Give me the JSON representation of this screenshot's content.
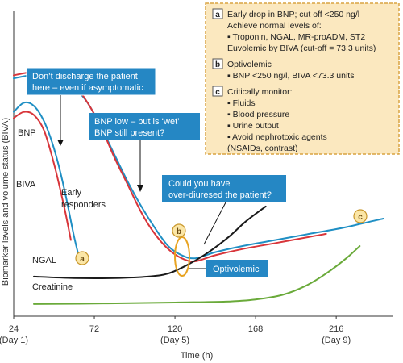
{
  "chart_data": {
    "type": "line",
    "xlabel": "Time (h)",
    "ylabel": "Biomarker levels and volume status (BIVA)",
    "xlim": [
      24,
      250
    ],
    "x_ticks": [
      {
        "value": 24,
        "label": "24",
        "sub": "(Day 1)"
      },
      {
        "value": 72,
        "label": "72",
        "sub": ""
      },
      {
        "value": 120,
        "label": "120",
        "sub": "(Day 5)"
      },
      {
        "value": 168,
        "label": "168",
        "sub": ""
      },
      {
        "value": 216,
        "label": "216",
        "sub": "(Day 9)"
      }
    ],
    "series": [
      {
        "name": "BNP",
        "color": "#1f8fc4",
        "x": [
          24,
          34,
          44,
          52,
          60,
          68,
          76,
          84,
          92,
          100,
          108,
          116,
          124,
          132,
          144,
          160,
          180,
          200,
          220,
          236,
          244
        ],
        "y": [
          78,
          79,
          79,
          78,
          75,
          70,
          62,
          53,
          44,
          36,
          29,
          23,
          20,
          19,
          21,
          23,
          25,
          27,
          29,
          31,
          32
        ]
      },
      {
        "name": "",
        "color": "#d8353a",
        "x": [
          24,
          34,
          44,
          52,
          60,
          68,
          76,
          84,
          92,
          100,
          108,
          116,
          124,
          132,
          144,
          160,
          180,
          200,
          210
        ],
        "y": [
          79,
          80,
          80,
          79,
          76,
          70,
          62,
          52,
          43,
          34,
          27,
          22,
          19,
          18,
          20,
          22,
          24,
          26,
          27
        ]
      },
      {
        "name": "BIVA",
        "color": "#1f8fc4",
        "x": [
          24,
          30,
          36,
          42,
          48,
          54,
          60,
          64
        ],
        "y": [
          67,
          70,
          69,
          64,
          55,
          42,
          26,
          17
        ]
      },
      {
        "name": "",
        "color": "#d8353a",
        "x": [
          24,
          30,
          36,
          42,
          48,
          54,
          58
        ],
        "y": [
          65,
          67,
          66,
          61,
          50,
          36,
          25
        ]
      },
      {
        "name": "NGAL",
        "color": "#1a1a1a",
        "x": [
          36,
          60,
          84,
          104,
          116,
          128,
          140,
          152,
          162,
          174
        ],
        "y": [
          13,
          12.5,
          12.5,
          13,
          14,
          17,
          21,
          26,
          31,
          36
        ]
      },
      {
        "name": "Creatinine",
        "color": "#6aaa3a",
        "x": [
          36,
          80,
          120,
          150,
          168,
          184,
          198,
          210,
          222,
          230
        ],
        "y": [
          4,
          4.2,
          4.5,
          4.8,
          5.5,
          7,
          10,
          14,
          19,
          23
        ]
      }
    ],
    "series_labels": [
      {
        "key": "bnp",
        "text": "BNP"
      },
      {
        "key": "biva",
        "text": "BIVA"
      },
      {
        "key": "early1",
        "text": "Early"
      },
      {
        "key": "early2",
        "text": "responders"
      },
      {
        "key": "ngal",
        "text": "NGAL"
      },
      {
        "key": "creat",
        "text": "Creatinine"
      }
    ],
    "callouts": [
      {
        "key": "discharge",
        "lines": [
          "Don’t discharge the patient",
          "here – even if asymptomatic"
        ]
      },
      {
        "key": "wet",
        "lines": [
          "BNP low – but is ‘wet’",
          "BNP still present?"
        ]
      },
      {
        "key": "overdiuresed",
        "lines": [
          "Could you have",
          "over-diuresed the patient?"
        ]
      },
      {
        "key": "optivolemic",
        "lines": [
          "Optivolemic"
        ]
      }
    ],
    "markers": [
      {
        "key": "a",
        "label": "a"
      },
      {
        "key": "b",
        "label": "b"
      },
      {
        "key": "c",
        "label": "c"
      }
    ],
    "legend": {
      "placement": "top-right",
      "sections": [
        {
          "badge": "a",
          "heading": "Early drop in BNP; cut off <250 ng/l",
          "lines": [
            "Achieve normal levels of:",
            "▪ Troponin, NGAL, MR-proADM, ST2",
            "Euvolemic by BIVA (cut-off = 73.3 units)"
          ]
        },
        {
          "badge": "b",
          "heading": "Optivolemic",
          "lines": [
            "▪ BNP <250 ng/l, BIVA <73.3 units"
          ]
        },
        {
          "badge": "c",
          "heading": "Critically monitor:",
          "lines": [
            "▪ Fluids",
            "▪ Blood pressure",
            "▪ Urine output",
            "▪ Avoid nephrotoxic agents",
            "  (NSAIDs, contrast)"
          ]
        }
      ]
    },
    "colors": {
      "callout_fill": "#2587c4",
      "legend_fill": "#fbe8bf",
      "legend_border": "#d9a442",
      "badge_fill": "#fbe6a6",
      "badge_stroke": "#c8962a",
      "optivolemic_ellipse": "#e8a321"
    }
  }
}
